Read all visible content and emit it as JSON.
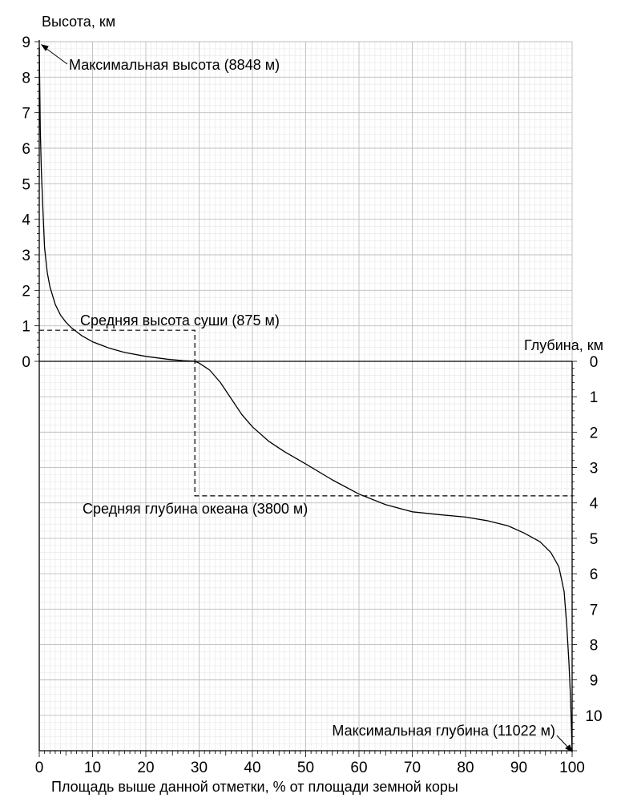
{
  "chart_data": {
    "type": "line",
    "title": "",
    "ylabel_left": "Высота, км",
    "ylabel_right": "Глубина, км",
    "xlabel": "Площадь выше данной отметки, % от площади земной коры",
    "xlim": [
      0,
      100
    ],
    "height_lim_km": [
      0,
      9
    ],
    "depth_lim_km": [
      0,
      11
    ],
    "x_ticks": [
      0,
      10,
      20,
      30,
      40,
      50,
      60,
      70,
      80,
      90,
      100
    ],
    "height_ticks": [
      0,
      1,
      2,
      3,
      4,
      5,
      6,
      7,
      8,
      9
    ],
    "depth_ticks": [
      0,
      1,
      2,
      3,
      4,
      5,
      6,
      7,
      8,
      9,
      10
    ],
    "grid": true,
    "series": [
      {
        "x": [
          0,
          0.1,
          0.2,
          0.4,
          0.7,
          1,
          1.5,
          2,
          3,
          4,
          5,
          6,
          8,
          10,
          13,
          16,
          20,
          24,
          27,
          29,
          29.2
        ],
        "height_km": [
          8.848,
          7.6,
          6.5,
          5.3,
          4.2,
          3.2,
          2.5,
          2.1,
          1.6,
          1.3,
          1.1,
          0.95,
          0.72,
          0.55,
          0.38,
          0.25,
          0.14,
          0.06,
          0.02,
          0.005,
          0
        ]
      },
      {
        "x": [
          29.2,
          30,
          32,
          34,
          36,
          38,
          40,
          43,
          46,
          50,
          55,
          60,
          65,
          70,
          75,
          80,
          84,
          88,
          91,
          94,
          96,
          97.5,
          98.5,
          99,
          99.4,
          99.7,
          100
        ],
        "depth_km": [
          0,
          0.05,
          0.25,
          0.6,
          1.05,
          1.5,
          1.85,
          2.25,
          2.55,
          2.9,
          3.35,
          3.75,
          4.05,
          4.25,
          4.33,
          4.4,
          4.5,
          4.65,
          4.85,
          5.1,
          5.4,
          5.8,
          6.5,
          7.5,
          8.5,
          9.5,
          11.022
        ]
      }
    ],
    "reference_lines": {
      "mean_land_height_km": 0.875,
      "mean_ocean_depth_km": 3.8,
      "land_area_pct": 29.2
    },
    "annotations": {
      "max_height": "Максимальная высота (8848 м)",
      "mean_land": "Средняя высота суши (875 м)",
      "mean_ocean": "Средняя глубина океана (3800 м)",
      "max_depth": "Максимальная глубина (11022 м)"
    }
  }
}
